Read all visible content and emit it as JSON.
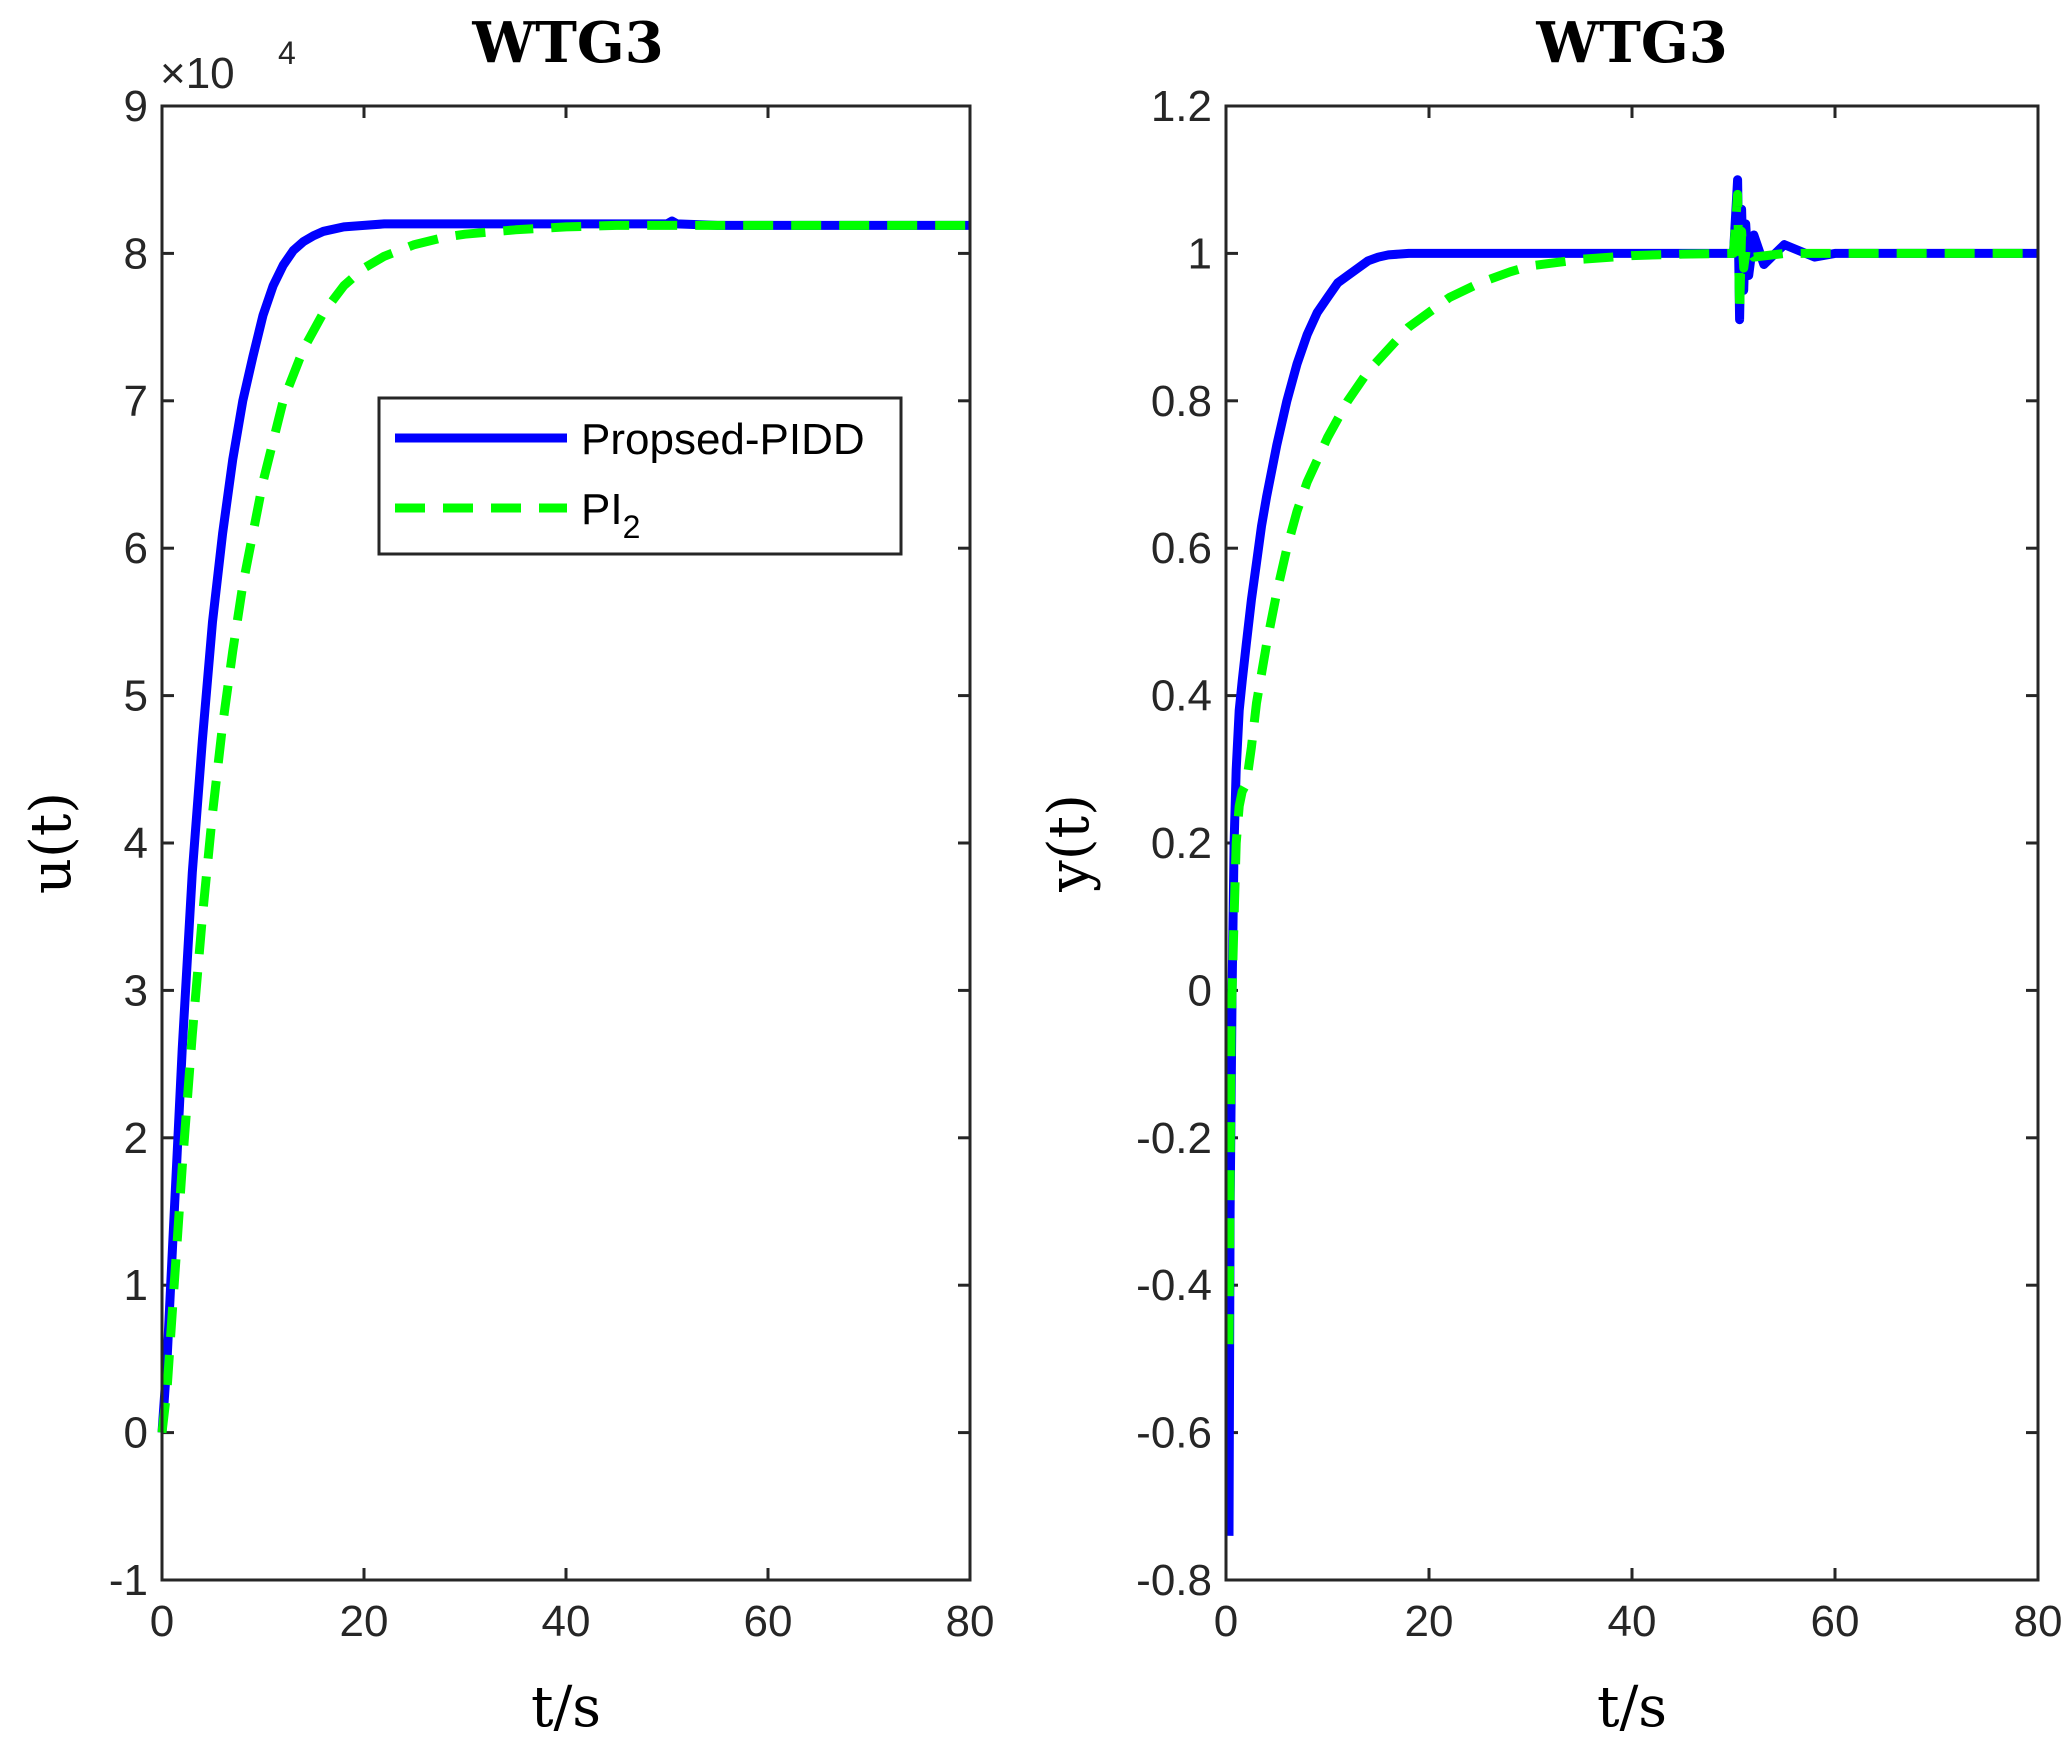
{
  "chart_data": [
    {
      "type": "line",
      "title": "WTG3",
      "xlabel": "t/s",
      "ylabel": "u(t)",
      "xlim": [
        0,
        80
      ],
      "ylim": [
        -1,
        9
      ],
      "y_scale_label": {
        "base": "×10",
        "exponent": "4"
      },
      "xticks": [
        "0",
        "20",
        "40",
        "60",
        "80"
      ],
      "yticks": [
        "-1",
        "0",
        "1",
        "2",
        "3",
        "4",
        "5",
        "6",
        "7",
        "8",
        "9"
      ],
      "legend": {
        "position": "upper-center",
        "entries": [
          "Propsed-PIDD",
          "PI2"
        ]
      },
      "series": [
        {
          "name": "Propsed-PIDD",
          "color": "#0000ff",
          "style": "solid",
          "x": [
            0,
            0.5,
            1,
            1.5,
            2,
            3,
            4,
            5,
            6,
            7,
            8,
            9,
            10,
            11,
            12,
            13,
            14,
            15,
            16,
            18,
            20,
            22,
            25,
            30,
            35,
            40,
            45,
            50,
            50.5,
            51,
            55,
            60,
            70,
            80
          ],
          "y": [
            0,
            0.5,
            1.2,
            1.9,
            2.6,
            3.8,
            4.7,
            5.5,
            6.1,
            6.6,
            7.0,
            7.3,
            7.58,
            7.78,
            7.92,
            8.02,
            8.08,
            8.12,
            8.15,
            8.18,
            8.19,
            8.2,
            8.2,
            8.2,
            8.2,
            8.2,
            8.2,
            8.2,
            8.22,
            8.2,
            8.19,
            8.19,
            8.19,
            8.19
          ]
        },
        {
          "name": "PI2",
          "color": "#00ff00",
          "style": "dashed",
          "x": [
            0,
            0.5,
            1,
            1.5,
            2,
            3,
            4,
            5,
            6,
            7,
            8,
            9,
            10,
            12,
            14,
            16,
            18,
            20,
            22,
            25,
            28,
            30,
            35,
            40,
            45,
            50,
            55,
            60,
            70,
            80
          ],
          "y": [
            0,
            0.3,
            0.8,
            1.3,
            1.8,
            2.7,
            3.5,
            4.2,
            4.8,
            5.3,
            5.75,
            6.1,
            6.45,
            7.0,
            7.35,
            7.6,
            7.78,
            7.9,
            7.98,
            8.06,
            8.11,
            8.13,
            8.16,
            8.18,
            8.19,
            8.19,
            8.19,
            8.19,
            8.19,
            8.19
          ]
        }
      ]
    },
    {
      "type": "line",
      "title": "WTG3",
      "xlabel": "t/s",
      "ylabel": "y(t)",
      "xlim": [
        0,
        80
      ],
      "ylim": [
        -0.8,
        1.2
      ],
      "xticks": [
        "0",
        "20",
        "40",
        "60",
        "80"
      ],
      "yticks": [
        "-0.8",
        "-0.6",
        "-0.4",
        "-0.2",
        "0",
        "0.2",
        "0.4",
        "0.6",
        "0.8",
        "1",
        "1.2"
      ],
      "series": [
        {
          "name": "Propsed-PIDD",
          "color": "#0000ff",
          "style": "solid",
          "x": [
            0.3,
            0.4,
            0.6,
            0.8,
            1.0,
            1.3,
            1.6,
            2,
            2.5,
            3,
            3.5,
            4,
            5,
            6,
            7,
            8,
            9,
            10,
            11,
            12,
            13,
            14,
            15,
            16,
            18,
            20,
            25,
            30,
            40,
            50,
            50.4,
            50.6,
            50.8,
            51,
            51.2,
            51.5,
            52,
            53,
            55,
            58,
            60,
            70,
            80
          ],
          "y": [
            -0.74,
            -0.3,
            0.0,
            0.2,
            0.3,
            0.38,
            0.42,
            0.47,
            0.53,
            0.58,
            0.63,
            0.67,
            0.74,
            0.8,
            0.85,
            0.89,
            0.92,
            0.94,
            0.96,
            0.97,
            0.98,
            0.99,
            0.995,
            0.998,
            1.0,
            1.0,
            1.0,
            1.0,
            1.0,
            1.0,
            1.1,
            0.91,
            1.06,
            0.95,
            1.04,
            0.97,
            1.025,
            0.985,
            1.012,
            0.995,
            1.0,
            1.0,
            1.0
          ]
        },
        {
          "name": "PI2",
          "color": "#00ff00",
          "style": "dashed",
          "x": [
            0.3,
            0.5,
            0.8,
            1.0,
            1.3,
            1.6,
            2,
            2.5,
            3,
            4,
            5,
            6,
            7,
            8,
            10,
            12,
            14,
            16,
            18,
            20,
            22,
            25,
            28,
            30,
            35,
            40,
            45,
            50,
            50.4,
            50.6,
            50.8,
            51,
            51.3,
            52,
            55,
            60,
            70,
            80
          ],
          "y": [
            -0.48,
            -0.05,
            0.1,
            0.2,
            0.25,
            0.27,
            0.28,
            0.33,
            0.39,
            0.47,
            0.54,
            0.6,
            0.65,
            0.69,
            0.75,
            0.8,
            0.84,
            0.87,
            0.9,
            0.92,
            0.94,
            0.96,
            0.975,
            0.983,
            0.992,
            0.997,
            0.999,
            1.0,
            1.08,
            0.92,
            1.03,
            0.98,
            1.01,
            0.995,
            1.0,
            1.0,
            1.0,
            1.0
          ]
        }
      ]
    }
  ]
}
